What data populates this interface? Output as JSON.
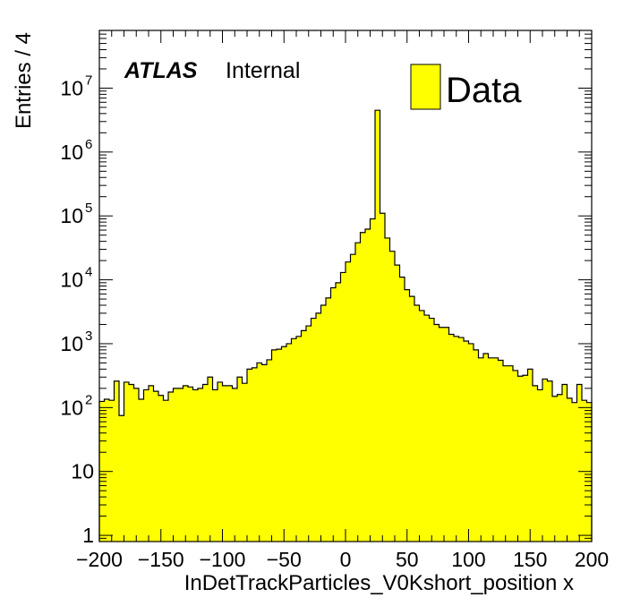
{
  "chart_data": {
    "type": "bar",
    "style": "histogram-step",
    "xlabel": "InDetTrackParticles_V0Kshort_position x",
    "ylabel": "Entries / 4",
    "xlim": [
      -200,
      200
    ],
    "ylim": [
      0.8,
      80000000
    ],
    "log_y": true,
    "grid": false,
    "bin_width": 4,
    "x_ticks": [
      -200,
      -150,
      -100,
      -50,
      0,
      50,
      100,
      150,
      200
    ],
    "x_tick_labels": [
      "−200",
      "−150",
      "−100",
      "−50",
      "0",
      "50",
      "100",
      "150",
      "200"
    ],
    "y_ticks": [
      1,
      10,
      100,
      1000,
      10000,
      100000,
      1000000,
      10000000
    ],
    "y_tick_labels": [
      {
        "base": "1",
        "exp": ""
      },
      {
        "base": "10",
        "exp": ""
      },
      {
        "base": "10",
        "exp": "2"
      },
      {
        "base": "10",
        "exp": "3"
      },
      {
        "base": "10",
        "exp": "4"
      },
      {
        "base": "10",
        "exp": "5"
      },
      {
        "base": "10",
        "exp": "6"
      },
      {
        "base": "10",
        "exp": "7"
      }
    ],
    "fill_color": "#ffff00",
    "line_color": "#000000",
    "legend": {
      "label": "Data",
      "placement": "top-right"
    },
    "annotation": {
      "experiment": "ATLAS",
      "status": "Internal"
    },
    "series": [
      {
        "name": "Data",
        "bin_low_edges": [
          -200,
          -196,
          -192,
          -188,
          -184,
          -180,
          -176,
          -172,
          -168,
          -164,
          -160,
          -156,
          -152,
          -148,
          -144,
          -140,
          -136,
          -132,
          -128,
          -124,
          -120,
          -116,
          -112,
          -108,
          -104,
          -100,
          -96,
          -92,
          -88,
          -84,
          -80,
          -76,
          -72,
          -68,
          -64,
          -60,
          -56,
          -52,
          -48,
          -44,
          -40,
          -36,
          -32,
          -28,
          -24,
          -20,
          -16,
          -12,
          -8,
          -4,
          0,
          4,
          8,
          12,
          16,
          20,
          24,
          28,
          32,
          36,
          40,
          44,
          48,
          52,
          56,
          60,
          64,
          68,
          72,
          76,
          80,
          84,
          88,
          92,
          96,
          100,
          104,
          108,
          112,
          116,
          120,
          124,
          128,
          132,
          136,
          140,
          144,
          148,
          152,
          156,
          160,
          164,
          168,
          172,
          176,
          180,
          184,
          188,
          192,
          196
        ],
        "values": [
          125,
          135,
          130,
          260,
          75,
          250,
          230,
          200,
          135,
          190,
          220,
          180,
          155,
          130,
          175,
          200,
          200,
          220,
          210,
          190,
          200,
          230,
          300,
          190,
          250,
          220,
          220,
          200,
          300,
          240,
          400,
          420,
          500,
          470,
          560,
          800,
          820,
          900,
          1000,
          1200,
          1300,
          1600,
          1900,
          2500,
          3000,
          4000,
          5200,
          7500,
          9000,
          13000,
          19000,
          25000,
          38000,
          55000,
          62000,
          90000,
          4500000,
          110000,
          45000,
          28000,
          17000,
          11000,
          7000,
          5500,
          4000,
          3300,
          2800,
          2500,
          2000,
          1800,
          1800,
          1400,
          1300,
          1250,
          1100,
          1000,
          800,
          600,
          700,
          600,
          600,
          550,
          450,
          450,
          380,
          310,
          320,
          400,
          220,
          190,
          280,
          260,
          150,
          160,
          230,
          140,
          120,
          230,
          130,
          120
        ]
      }
    ]
  }
}
